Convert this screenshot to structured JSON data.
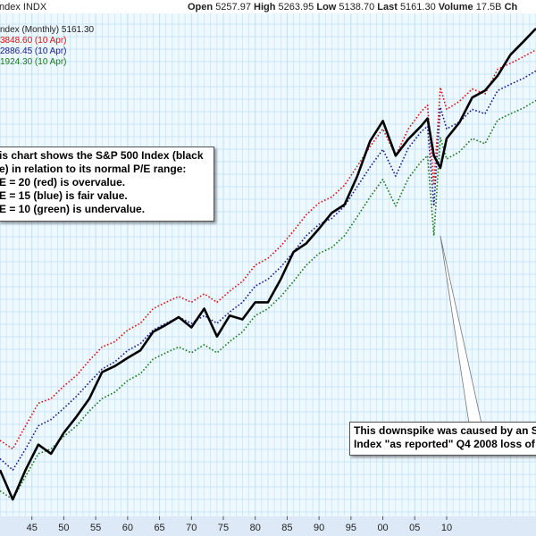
{
  "header": {
    "title": "ndex INDX",
    "open_label": "Open",
    "open_value": "5257.97",
    "high_label": "High",
    "high_value": "5263.95",
    "low_label": "Low",
    "low_value": "5138.70",
    "last_label": "Last",
    "last_value": "5161.30",
    "volume_label": "Volume",
    "volume_value": "17.5B",
    "cut_text": "Ch"
  },
  "legend": {
    "line1": "ndex (Monthly) 5161.30",
    "line2": "3848.60 (10 Apr)",
    "line3": "2886.45 (10 Apr)",
    "line4": "1924.30 (10 Apr)"
  },
  "annotations": {
    "main_lines": [
      "is chart shows the S&P 500 Index (black",
      "e) in relation to its normal P/E range:",
      "E = 20 (red) is overvalue.",
      "E = 15 (blue) is fair value.",
      "E = 10 (green) is undervalue."
    ],
    "spike_lines": [
      "This downspike was caused by an S&",
      "Index \"as reported\" Q4 2008 loss of -"
    ]
  },
  "colors": {
    "index_line": "#000000",
    "pe20_line": "#dd1111",
    "pe15_line": "#1a1a8c",
    "pe10_line": "#1a7a1a",
    "grid": "#bfe0f2",
    "plot_bg": "#eef8ff",
    "axis_bar": "#dde9f6"
  },
  "chart_data": {
    "type": "line",
    "title": "",
    "xlabel": "",
    "ylabel": "",
    "x_ticks": [
      "45",
      "50",
      "55",
      "60",
      "65",
      "70",
      "75",
      "80",
      "85",
      "90",
      "95",
      "00",
      "05",
      "10"
    ],
    "x_range": [
      1940,
      2024
    ],
    "y_scale": "log",
    "x": [
      1940,
      1942,
      1944,
      1946,
      1948,
      1950,
      1952,
      1954,
      1956,
      1958,
      1960,
      1962,
      1964,
      1966,
      1968,
      1970,
      1972,
      1974,
      1976,
      1978,
      1980,
      1982,
      1984,
      1986,
      1988,
      1990,
      1992,
      1994,
      1996,
      1998,
      2000,
      2002,
      2004,
      2006,
      2007,
      2008,
      2009,
      2010,
      2012,
      2014,
      2016,
      2018,
      2020,
      2022,
      2024
    ],
    "series": [
      {
        "name": "ndex (Monthly)",
        "color": "#000000",
        "values": [
          12,
          8,
          12,
          17,
          15,
          20,
          25,
          32,
          46,
          50,
          56,
          62,
          80,
          88,
          98,
          85,
          110,
          75,
          100,
          95,
          120,
          120,
          165,
          240,
          270,
          330,
          410,
          460,
          680,
          1100,
          1450,
          900,
          1130,
          1350,
          1500,
          900,
          760,
          1140,
          1420,
          2000,
          2200,
          2700,
          3600,
          4300,
          5161
        ]
      },
      {
        "name": "3848.60 (10 Apr)",
        "color": "#dd1111",
        "values": [
          18,
          16,
          22,
          30,
          32,
          38,
          44,
          54,
          65,
          70,
          82,
          90,
          110,
          120,
          130,
          120,
          135,
          120,
          140,
          160,
          200,
          220,
          260,
          320,
          400,
          470,
          510,
          600,
          780,
          1020,
          1300,
          900,
          1300,
          1650,
          1800,
          600,
          2300,
          1700,
          1900,
          2250,
          2100,
          2950,
          3200,
          3500,
          3850
        ]
      },
      {
        "name": "2886.45 (10 Apr)",
        "color": "#1a1a8c",
        "values": [
          14,
          12,
          16,
          22,
          24,
          28,
          33,
          40,
          48,
          53,
          62,
          68,
          82,
          90,
          98,
          90,
          100,
          90,
          105,
          120,
          150,
          165,
          195,
          240,
          300,
          350,
          380,
          450,
          590,
          770,
          980,
          680,
          1000,
          1250,
          1350,
          450,
          1750,
          1300,
          1430,
          1700,
          1600,
          2200,
          2400,
          2600,
          2886
        ]
      },
      {
        "name": "1924.30 (10 Apr)",
        "color": "#1a7a1a",
        "values": [
          9,
          8,
          11,
          15,
          16,
          19,
          22,
          27,
          32,
          35,
          41,
          45,
          55,
          60,
          65,
          60,
          67,
          60,
          70,
          80,
          100,
          110,
          130,
          160,
          200,
          235,
          255,
          300,
          390,
          510,
          650,
          450,
          660,
          830,
          900,
          300,
          1150,
          860,
          950,
          1140,
          1060,
          1470,
          1600,
          1730,
          1924
        ]
      }
    ]
  }
}
